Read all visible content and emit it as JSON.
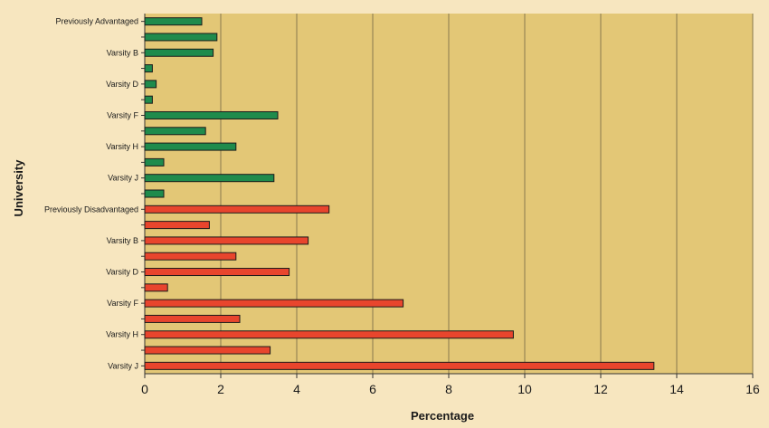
{
  "chart_data": {
    "type": "bar",
    "orientation": "horizontal",
    "title": "",
    "xlabel": "Percentage",
    "ylabel": "University",
    "xlim": [
      0,
      16
    ],
    "x_ticks": [
      0,
      2,
      4,
      6,
      8,
      10,
      12,
      14,
      16
    ],
    "grid": "vertical",
    "categories": [
      "Previously Advantaged",
      "",
      "Varsity B",
      "",
      "Varsity D",
      "",
      "Varsity F",
      "",
      "Varsity H",
      "",
      "Varsity J",
      "",
      "Previously Disadvantaged",
      "",
      "Varsity B",
      "",
      "Varsity D",
      "",
      "Varsity F",
      "",
      "Varsity H",
      "",
      "Varsity J"
    ],
    "values": [
      1.5,
      1.9,
      1.8,
      0.2,
      0.3,
      0.2,
      3.5,
      1.6,
      2.4,
      0.5,
      3.4,
      0.5,
      4.85,
      1.7,
      4.3,
      2.4,
      3.8,
      0.6,
      6.8,
      2.5,
      9.7,
      3.3,
      13.4
    ],
    "bar_colors": [
      "#1f8b4c",
      "#1f8b4c",
      "#1f8b4c",
      "#1f8b4c",
      "#1f8b4c",
      "#1f8b4c",
      "#1f8b4c",
      "#1f8b4c",
      "#1f8b4c",
      "#1f8b4c",
      "#1f8b4c",
      "#1f8b4c",
      "#e8452d",
      "#e8452d",
      "#e8452d",
      "#e8452d",
      "#e8452d",
      "#e8452d",
      "#e8452d",
      "#e8452d",
      "#e8452d",
      "#e8452d",
      "#e8452d"
    ],
    "plot_background": "#e3c776",
    "page_background": "#f7e6bf"
  }
}
